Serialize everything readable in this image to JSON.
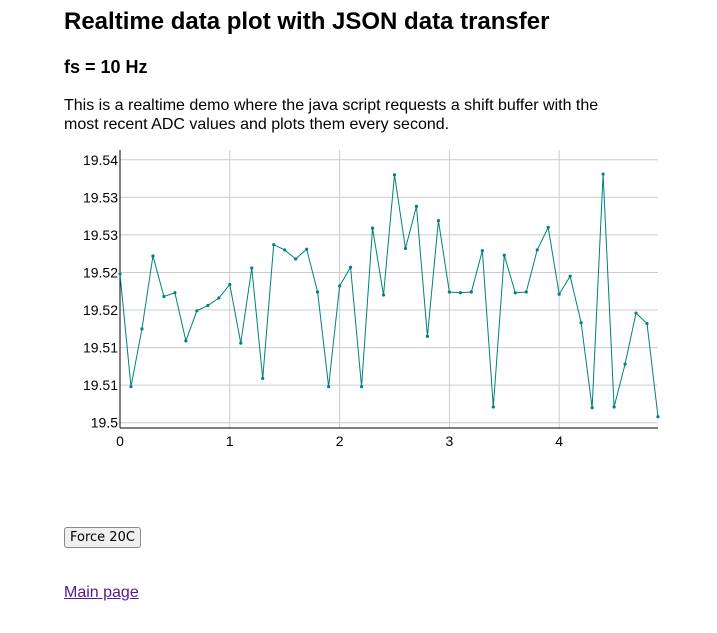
{
  "page": {
    "title": "Realtime data plot with JSON data transfer",
    "subtitle": "fs = 10 Hz",
    "description": "This is a realtime demo where the java script requests a shift buffer with the most recent ADC values and plots them every second."
  },
  "controls": {
    "force_button_label": "Force 20C",
    "main_page_link": "Main page"
  },
  "colors": {
    "line": "#008080",
    "grid": "#cccccc"
  },
  "chart_data": {
    "type": "line",
    "title": "",
    "xlabel": "",
    "ylabel": "",
    "xlim": [
      0,
      4.9
    ],
    "ylim": [
      19.4993,
      19.5363
    ],
    "grid": true,
    "x_ticks": [
      0,
      1,
      2,
      3,
      4
    ],
    "x_tick_labels": [
      "0",
      "1",
      "2",
      "3",
      "4"
    ],
    "y_ticks": [
      19.5,
      19.505,
      19.51,
      19.515,
      19.52,
      19.525,
      19.53,
      19.535
    ],
    "y_tick_labels": [
      "19.5",
      "19.51",
      "19.51",
      "19.52",
      "19.52",
      "19.53",
      "19.53",
      "19.54"
    ],
    "series": [
      {
        "x": [
          0,
          0.1,
          0.2,
          0.3,
          0.4,
          0.5,
          0.6,
          0.7,
          0.8,
          0.9,
          1.0,
          1.1,
          1.2,
          1.3,
          1.4,
          1.5,
          1.6,
          1.7,
          1.8,
          1.9,
          2.0,
          2.1,
          2.2,
          2.3,
          2.4,
          2.5,
          2.6,
          2.7,
          2.8,
          2.9,
          3.0,
          3.1,
          3.2,
          3.3,
          3.4,
          3.5,
          3.6,
          3.7,
          3.8,
          3.9,
          4.0,
          4.1,
          4.2,
          4.3,
          4.4,
          4.5,
          4.6,
          4.7,
          4.8,
          4.9
        ],
        "values": [
          19.5198,
          19.5048,
          19.5125,
          19.5222,
          19.5168,
          19.5173,
          19.5109,
          19.5149,
          19.5156,
          19.5166,
          19.5184,
          19.5106,
          19.5206,
          19.5059,
          19.5237,
          19.523,
          19.5218,
          19.5231,
          19.5174,
          19.5048,
          19.5182,
          19.5207,
          19.5048,
          19.5259,
          19.517,
          19.533,
          19.5232,
          19.5288,
          19.5115,
          19.5269,
          19.5174,
          19.5173,
          19.5174,
          19.5229,
          19.5021,
          19.5223,
          19.5173,
          19.5174,
          19.523,
          19.526,
          19.5171,
          19.5195,
          19.5133,
          19.502,
          19.5331,
          19.5021,
          19.5078,
          19.5146,
          19.5132,
          19.5008
        ]
      }
    ]
  }
}
